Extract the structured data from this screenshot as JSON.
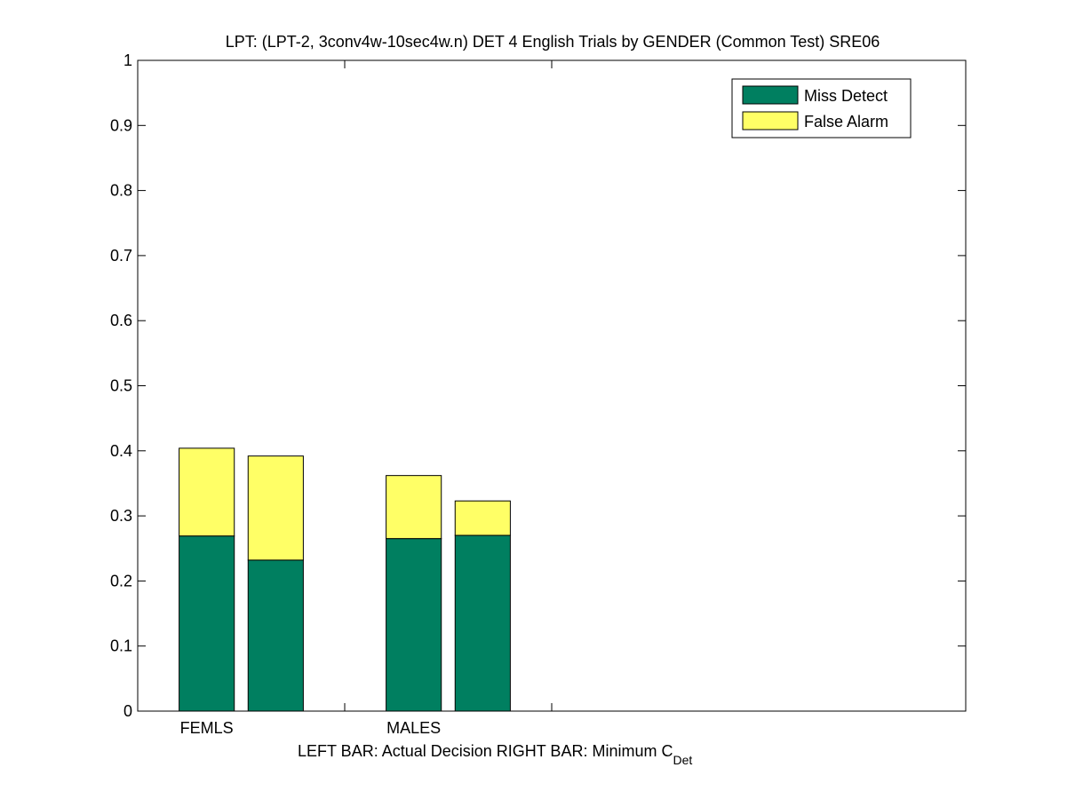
{
  "chart_data": {
    "type": "bar",
    "stacked": true,
    "title": "LPT: (LPT-2, 3conv4w-10sec4w.n) DET 4 English Trials by GENDER (Common Test) SRE06",
    "xlabel_main": "LEFT BAR: Actual Decision     RIGHT BAR: Minimum C",
    "xlabel_subscript": "Det",
    "ylabel": "",
    "ylim": [
      0,
      1
    ],
    "yticks": [
      "0",
      "0.1",
      "0.2",
      "0.3",
      "0.4",
      "0.5",
      "0.6",
      "0.7",
      "0.8",
      "0.9",
      "1"
    ],
    "ytick_values": [
      0,
      0.1,
      0.2,
      0.3,
      0.4,
      0.5,
      0.6,
      0.7,
      0.8,
      0.9,
      1
    ],
    "xlim": [
      0,
      12
    ],
    "categories": [
      "FEMLS",
      "MALES"
    ],
    "category_centers": [
      1,
      4
    ],
    "x_tick_marks": [
      3,
      6
    ],
    "bar_width": 0.8,
    "bars": [
      {
        "group": "FEMLS",
        "x": 1,
        "miss": 0.269,
        "false_alarm": 0.135
      },
      {
        "group": "FEMLS",
        "x": 2,
        "miss": 0.232,
        "false_alarm": 0.16
      },
      {
        "group": "MALES",
        "x": 4,
        "miss": 0.265,
        "false_alarm": 0.097
      },
      {
        "group": "MALES",
        "x": 5,
        "miss": 0.27,
        "false_alarm": 0.053
      }
    ],
    "series": [
      {
        "name": "Miss Detect",
        "color": "#007f60"
      },
      {
        "name": "False Alarm",
        "color": "#ffff66"
      }
    ],
    "legend_position": "top-right",
    "grid": false
  }
}
